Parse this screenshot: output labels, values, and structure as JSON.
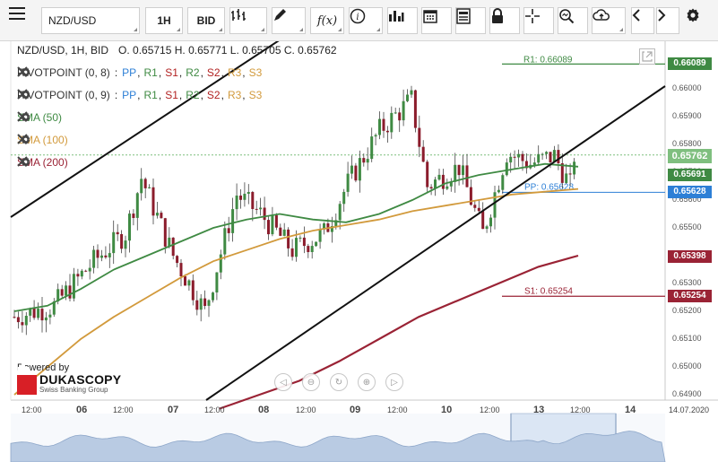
{
  "toolbar": {
    "symbol": "NZD/USD",
    "timeframe": "1H",
    "side": "BID",
    "icons": [
      "menu-icon",
      "bar-chart-type-icon",
      "pencil-icon",
      "fx-icon",
      "info-icon",
      "volume-icon",
      "calendar-icon",
      "news-icon",
      "lock-icon",
      "crosshair-icon",
      "zoom-icon",
      "cloud-upload-icon",
      "prev-icon",
      "next-icon",
      "settings-icon"
    ],
    "fx_label": "f(x)"
  },
  "chart": {
    "header": "NZD/USD, 1H, BID",
    "ohlc": "O. 0.65715 H. 0.65771 L. 0.65705 C. 0.65762",
    "indicators": [
      {
        "name": "PIVOTPOINT (0, 8)",
        "color": "#333333"
      },
      {
        "name": "PIVOTPOINT (0, 9)",
        "color": "#333333"
      },
      {
        "name": "SMA (50)",
        "color": "#3f8a43"
      },
      {
        "name": "SMA (100)",
        "color": "#d29a3c"
      },
      {
        "name": "SMA (200)",
        "color": "#9a2335"
      }
    ],
    "pivot_labels": [
      {
        "text": "PP",
        "color": "#2d7fd6"
      },
      {
        "text": "R1",
        "color": "#3f8a43"
      },
      {
        "text": "S1",
        "color": "#b22222"
      },
      {
        "text": "R2",
        "color": "#3f8a43"
      },
      {
        "text": "S2",
        "color": "#b22222"
      },
      {
        "text": "R3",
        "color": "#d29a3c"
      },
      {
        "text": "S3",
        "color": "#d29a3c"
      }
    ],
    "colon": ":",
    "y_ticks": [
      "0.66000",
      "0.65900",
      "0.65800",
      "0.65700",
      "0.65600",
      "0.65500",
      "0.65400",
      "0.65300",
      "0.65200",
      "0.65100",
      "0.65000",
      "0.64900"
    ],
    "price_tags": [
      {
        "label": "0.66089",
        "value": 0.66089,
        "color": "#3f8a43"
      },
      {
        "label": "0.65762",
        "value": 0.65762,
        "color": "#7fbf7f"
      },
      {
        "label": "0.65691",
        "value": 0.65691,
        "color": "#3f8a43"
      },
      {
        "label": "0.65628",
        "value": 0.65628,
        "color": "#2d7fd6"
      },
      {
        "label": "0.65398",
        "value": 0.65398,
        "color": "#9a2335"
      },
      {
        "label": "0.65254",
        "value": 0.65254,
        "color": "#9a2335"
      }
    ],
    "line_labels": {
      "r1": "R1: 0.66089",
      "pp": "PP: 0.65628",
      "s1": "S1: 0.65254"
    },
    "x_ticks": [
      {
        "label": "12:00",
        "major": false
      },
      {
        "label": "06",
        "major": true
      },
      {
        "label": "12:00",
        "major": false
      },
      {
        "label": "07",
        "major": true
      },
      {
        "label": "12:00",
        "major": false
      },
      {
        "label": "08",
        "major": true
      },
      {
        "label": "12:00",
        "major": false
      },
      {
        "label": "09",
        "major": true
      },
      {
        "label": "12:00",
        "major": false
      },
      {
        "label": "10",
        "major": true
      },
      {
        "label": "12:00",
        "major": false
      },
      {
        "label": "13",
        "major": true
      },
      {
        "label": "12:00",
        "major": false
      },
      {
        "label": "14",
        "major": true
      }
    ],
    "x_end_label": "14.07.2020",
    "powered_by": "Powered by",
    "brand_name": "DUKASCOPY",
    "brand_sub": "Swiss Banking Group"
  },
  "chart_data": {
    "type": "candlestick",
    "y_range": [
      0.649,
      0.661
    ],
    "series": [
      {
        "name": "SMA (50)",
        "values": [
          0.652,
          0.6522,
          0.6528,
          0.6535,
          0.654,
          0.6545,
          0.655,
          0.6553,
          0.6555,
          0.6553,
          0.6552,
          0.6555,
          0.656,
          0.6566,
          0.6569,
          0.6571,
          0.6573,
          0.6572
        ]
      },
      {
        "name": "SMA (100)",
        "values": [
          0.649,
          0.65,
          0.651,
          0.6518,
          0.6525,
          0.6532,
          0.6538,
          0.6542,
          0.6546,
          0.6549,
          0.6551,
          0.6553,
          0.6556,
          0.6558,
          0.656,
          0.6562,
          0.6563,
          0.6564
        ]
      },
      {
        "name": "SMA (200)",
        "values": [
          0.6485,
          0.649,
          0.6495,
          0.6502,
          0.651,
          0.6518,
          0.6524,
          0.653,
          0.6536,
          0.654
        ]
      }
    ],
    "last_close": 0.65762
  }
}
